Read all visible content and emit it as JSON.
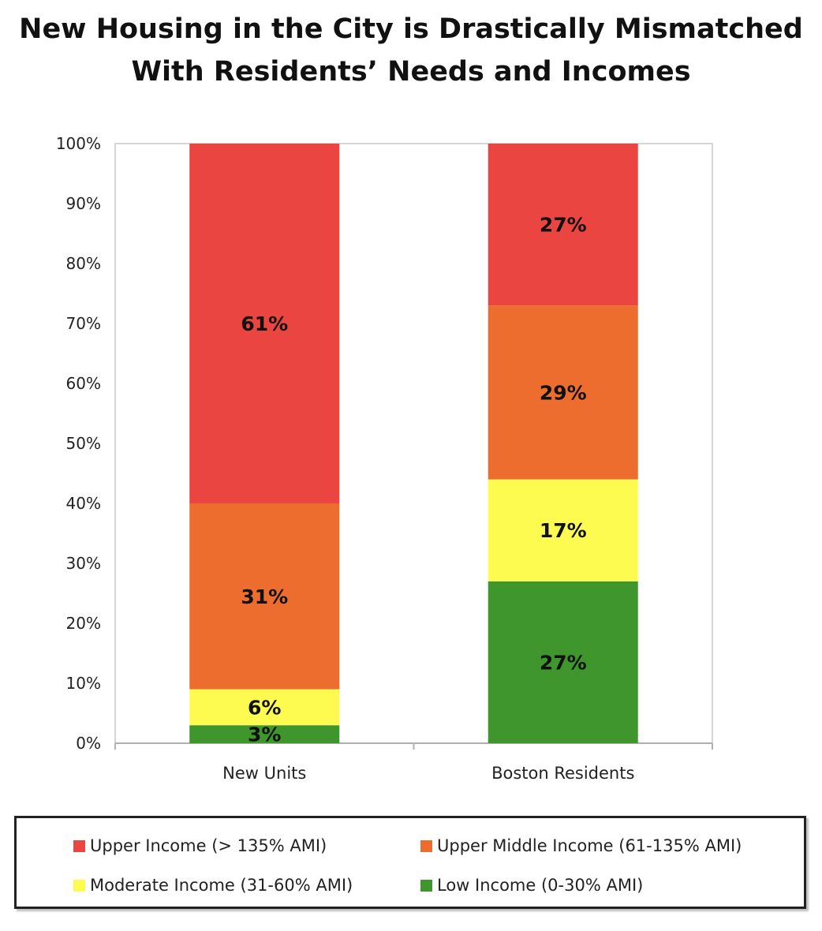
{
  "chart_data": {
    "type": "bar",
    "stacked": true,
    "title": "New Housing in the City is Drastically Mismatched With Residents’ Needs and Incomes",
    "categories": [
      "New Units",
      "Boston Residents"
    ],
    "series": [
      {
        "name": "Low Income (0-30% AMI)",
        "color": "#3e962d",
        "values": [
          3,
          27
        ],
        "labels": [
          "3%",
          "27%"
        ]
      },
      {
        "name": "Moderate Income (31-60% AMI)",
        "color": "#fdfb4f",
        "values": [
          6,
          17
        ],
        "labels": [
          "6%",
          "17%"
        ]
      },
      {
        "name": "Upper Middle Income (61-135% AMI)",
        "color": "#ec6d2d",
        "values": [
          31,
          29
        ],
        "labels": [
          "31%",
          "29%"
        ]
      },
      {
        "name": "Upper Income (> 135% AMI)",
        "color": "#ea4540",
        "values": [
          61,
          27
        ],
        "labels": [
          "61%",
          "27%"
        ]
      }
    ],
    "y_ticks": [
      "0%",
      "10%",
      "20%",
      "30%",
      "40%",
      "50%",
      "60%",
      "70%",
      "80%",
      "90%",
      "100%"
    ],
    "ylim": [
      0,
      100
    ],
    "grid": false,
    "legend_placement": "bottom",
    "legend_order": [
      3,
      2,
      1,
      0
    ]
  }
}
